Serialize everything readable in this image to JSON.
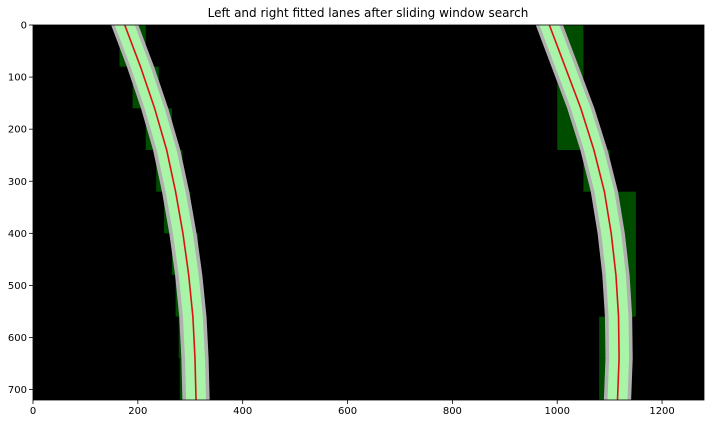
{
  "chart_data": {
    "type": "image",
    "title": "Left and right fitted lanes after sliding window search",
    "xlim": [
      0,
      1280
    ],
    "ylim": [
      720,
      0
    ],
    "xticks": [
      0,
      200,
      400,
      600,
      800,
      1000,
      1200
    ],
    "yticks": [
      0,
      100,
      200,
      300,
      400,
      500,
      600,
      700
    ],
    "grid": false,
    "colors": {
      "background": "#000000",
      "lane_pixels": "#b0b0b0",
      "detected_pixels": "#a8f5a8",
      "window": "#004d00",
      "fit_line": "#dd1111"
    },
    "left_lane": {
      "windows": [
        {
          "x": [
            165,
            215
          ],
          "y": [
            0,
            80
          ]
        },
        {
          "x": [
            190,
            240
          ],
          "y": [
            80,
            160
          ]
        },
        {
          "x": [
            215,
            265
          ],
          "y": [
            160,
            240
          ]
        },
        {
          "x": [
            235,
            285
          ],
          "y": [
            240,
            320
          ]
        },
        {
          "x": [
            250,
            300
          ],
          "y": [
            320,
            400
          ]
        },
        {
          "x": [
            265,
            315
          ],
          "y": [
            400,
            480
          ]
        },
        {
          "x": [
            272,
            322
          ],
          "y": [
            480,
            560
          ]
        },
        {
          "x": [
            278,
            328
          ],
          "y": [
            560,
            640
          ]
        },
        {
          "x": [
            280,
            330
          ],
          "y": [
            640,
            720
          ]
        }
      ],
      "fit": {
        "x": [
          175,
          205,
          232,
          255,
          272,
          286,
          297,
          305,
          309,
          311
        ],
        "y": [
          0,
          80,
          160,
          240,
          320,
          400,
          480,
          560,
          640,
          720
        ]
      }
    },
    "right_lane": {
      "windows": [
        {
          "x": [
            1000,
            1050
          ],
          "y": [
            0,
            80
          ]
        },
        {
          "x": [
            1000,
            1050
          ],
          "y": [
            80,
            160
          ]
        },
        {
          "x": [
            1000,
            1050
          ],
          "y": [
            160,
            240
          ]
        },
        {
          "x": [
            1050,
            1100
          ],
          "y": [
            240,
            320
          ]
        },
        {
          "x": [
            1100,
            1150
          ],
          "y": [
            320,
            400
          ]
        },
        {
          "x": [
            1100,
            1150
          ],
          "y": [
            400,
            480
          ]
        },
        {
          "x": [
            1100,
            1150
          ],
          "y": [
            480,
            560
          ]
        },
        {
          "x": [
            1080,
            1130
          ],
          "y": [
            560,
            640
          ]
        },
        {
          "x": [
            1080,
            1130
          ],
          "y": [
            640,
            720
          ]
        }
      ],
      "fit": {
        "x": [
          985,
          1015,
          1045,
          1070,
          1090,
          1103,
          1112,
          1117,
          1118,
          1115
        ],
        "y": [
          0,
          80,
          160,
          240,
          320,
          400,
          480,
          560,
          640,
          720
        ]
      }
    }
  }
}
